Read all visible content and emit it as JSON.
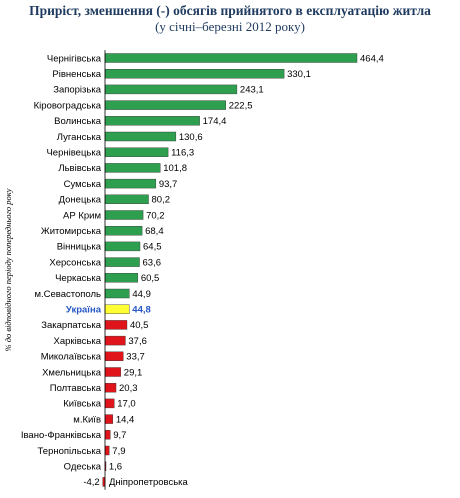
{
  "title": "Приріст, зменшення (-) обсягів прийнятого в експлуатацію житла",
  "subtitle": "(у січні–березні 2012 року)",
  "chart_data": {
    "type": "bar",
    "orientation": "horizontal",
    "ylabel": "% до відповідного періоду попереднього року",
    "categories": [
      "Чернігівська",
      "Рівненська",
      "Запорізька",
      "Кіровоградська",
      "Волинська",
      "Луганська",
      "Чернівецька",
      "Львівська",
      "Сумська",
      "Донецька",
      "АР Крим",
      "Житомирська",
      "Вінницька",
      "Херсонська",
      "Черкаська",
      "м.Севастополь",
      "Україна",
      "Закарпатська",
      "Харківська",
      "Миколаївська",
      "Хмельницька",
      "Полтавська",
      "Київська",
      "м.Київ",
      "Івано-Франківська",
      "Тернопільська",
      "Одеська",
      "Дніпропетровська"
    ],
    "values": [
      464.4,
      330.1,
      243.1,
      222.5,
      174.4,
      130.6,
      116.3,
      101.8,
      93.7,
      80.2,
      70.2,
      68.4,
      64.5,
      63.6,
      60.5,
      44.9,
      44.8,
      40.5,
      37.6,
      33.7,
      29.1,
      20.3,
      17.0,
      14.4,
      9.7,
      7.9,
      1.6,
      -4.2
    ],
    "value_labels": [
      "464,4",
      "330,1",
      "243,1",
      "222,5",
      "174,4",
      "130,6",
      "116,3",
      "101,8",
      "93,7",
      "80,2",
      "70,2",
      "68,4",
      "64,5",
      "63,6",
      "60,5",
      "44,9",
      "44,8",
      "40,5",
      "37,6",
      "33,7",
      "29,1",
      "20,3",
      "17,0",
      "14,4",
      "9,7",
      "7,9",
      "1,6",
      "-4,2"
    ],
    "colors": {
      "above": "#2e9e4f",
      "average": "#ffff33",
      "below": "#e0141b",
      "highlight_label": "#2457c5"
    }
  }
}
